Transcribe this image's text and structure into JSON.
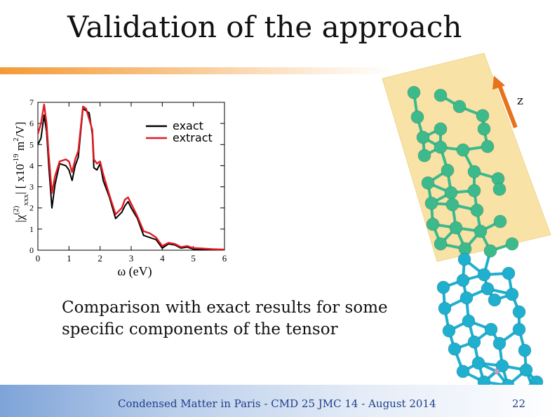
{
  "slide": {
    "title": "Validation of the approach",
    "caption_lines": [
      "Comparison with exact results for some",
      "specific components of the tensor"
    ],
    "footer": "Condensed Matter in Paris - CMD 25 JMC 14 -  August 2014",
    "page_number": "22"
  },
  "figure": {
    "axis_label": "z",
    "colors": {
      "arrow": "#e8721c",
      "highlight": "#f8e2a6",
      "upper_atoms": "#3dba8c",
      "lower_atoms": "#1fb0cf",
      "hydrogen": "#b7a3c7"
    }
  },
  "chart_data": {
    "type": "line",
    "xlabel": "ω (eV)",
    "ylabel": "|χ(2)xxx| [ x10-19 m2/V]",
    "ylabel_parts": {
      "base": "|χ",
      "sup": "(2)",
      "sub": "xxx",
      "mid": "| [ x10",
      "exp": "-19",
      "unit": " m",
      "unit_sup": "2",
      "tail": "/V]"
    },
    "xlim": [
      0,
      6
    ],
    "ylim": [
      0,
      7
    ],
    "xticks": [
      0,
      1,
      2,
      3,
      4,
      5,
      6
    ],
    "yticks": [
      0,
      1,
      2,
      3,
      4,
      5,
      6,
      7
    ],
    "legend_position": "top-right",
    "series": [
      {
        "name": "exact",
        "color": "#000000",
        "x": [
          0,
          0.1,
          0.2,
          0.28,
          0.35,
          0.45,
          0.55,
          0.7,
          0.9,
          1.0,
          1.1,
          1.2,
          1.3,
          1.45,
          1.55,
          1.65,
          1.75,
          1.8,
          1.9,
          2.0,
          2.1,
          2.3,
          2.5,
          2.7,
          2.8,
          2.9,
          3.0,
          3.2,
          3.4,
          3.6,
          3.8,
          4.0,
          4.2,
          4.4,
          4.6,
          4.8,
          5.0,
          5.3,
          5.6,
          6.0
        ],
        "y": [
          5.0,
          5.3,
          6.4,
          5.6,
          4.0,
          2.0,
          3.1,
          4.1,
          4.0,
          3.8,
          3.3,
          4.0,
          4.4,
          6.7,
          6.6,
          6.5,
          5.5,
          3.9,
          3.8,
          4.1,
          3.3,
          2.5,
          1.5,
          1.8,
          2.1,
          2.3,
          2.0,
          1.5,
          0.7,
          0.6,
          0.5,
          0.1,
          0.3,
          0.25,
          0.1,
          0.15,
          0.05,
          0.05,
          0.03,
          0.02
        ]
      },
      {
        "name": "extract",
        "color": "#e01b24",
        "x": [
          0,
          0.1,
          0.2,
          0.28,
          0.35,
          0.45,
          0.55,
          0.7,
          0.9,
          1.0,
          1.1,
          1.2,
          1.3,
          1.45,
          1.55,
          1.65,
          1.75,
          1.8,
          1.9,
          2.0,
          2.1,
          2.3,
          2.5,
          2.7,
          2.8,
          2.9,
          3.0,
          3.2,
          3.4,
          3.6,
          3.8,
          4.0,
          4.2,
          4.4,
          4.6,
          4.8,
          5.0,
          5.3,
          5.6,
          6.0
        ],
        "y": [
          5.5,
          6.0,
          6.9,
          6.0,
          4.5,
          2.7,
          3.5,
          4.2,
          4.3,
          4.2,
          3.7,
          4.3,
          4.7,
          6.8,
          6.7,
          6.2,
          5.7,
          4.3,
          4.1,
          4.2,
          3.6,
          2.6,
          1.7,
          2.0,
          2.4,
          2.5,
          2.2,
          1.6,
          0.9,
          0.8,
          0.6,
          0.2,
          0.35,
          0.3,
          0.15,
          0.2,
          0.1,
          0.08,
          0.05,
          0.03
        ]
      }
    ]
  }
}
